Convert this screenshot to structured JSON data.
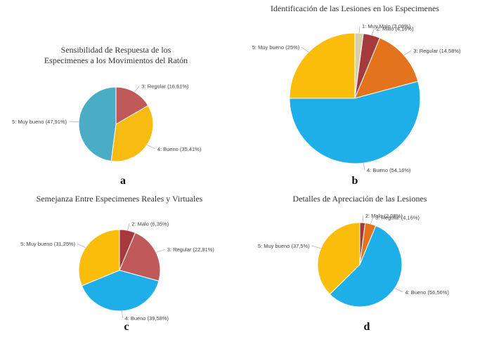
{
  "chart_data": [
    {
      "type": "pie",
      "panel_label": "a",
      "title": [
        "Sensibilidad  de Respuesta de los",
        "Especimenes a los Movimientos  del Ratón"
      ],
      "categories": [
        "3: Regular",
        "4: Bueno",
        "5: Muy bueno"
      ],
      "values": [
        16.61,
        35.41,
        47.91
      ],
      "value_labels": [
        "(16,61%)",
        "(35,41%)",
        "(47,91%)"
      ],
      "colors": [
        "#c0595a",
        "#f7bb12",
        "#4bacc6"
      ]
    },
    {
      "type": "pie",
      "panel_label": "b",
      "title": [
        "Identificación de las Lesiones en los Especimenes"
      ],
      "categories": [
        "1: Muy Malo",
        "2: Malo",
        "3: Regular",
        "4: Bueno",
        "5: Muy bueno"
      ],
      "values": [
        2.08,
        4.16,
        14.58,
        54.16,
        25
      ],
      "value_labels": [
        "(2,08%)",
        "(4,16%)",
        "(14,58%)",
        "(54,16%)",
        "(25%)"
      ],
      "colors": [
        "#d8d0a8",
        "#a5393b",
        "#e3731d",
        "#1eaee8",
        "#fbbd0b"
      ]
    },
    {
      "type": "pie",
      "panel_label": "c",
      "title": [
        "Semejanza  Entre Especimenes Reales y Virtuales"
      ],
      "categories": [
        "2: Malo",
        "3: Regular",
        "4: Bueno",
        "5: Muy bueno"
      ],
      "values": [
        6.35,
        22.91,
        39.58,
        31.25
      ],
      "value_labels": [
        "(6,35%)",
        "(22,91%)",
        "(39,58%)",
        "(31,25%)"
      ],
      "colors": [
        "#a5393b",
        "#c0595a",
        "#1eaee8",
        "#fbbd0b"
      ]
    },
    {
      "type": "pie",
      "panel_label": "d",
      "title": [
        "Detalles  de Apreciación de las Lesiones"
      ],
      "categories": [
        "2: Malo",
        "3: Regular",
        "4: Bueno",
        "5: Muy bueno"
      ],
      "values": [
        2.08,
        4.16,
        56.56,
        37.5
      ],
      "value_labels": [
        "(2,08%)",
        "(4,16%)",
        "(56,56%)",
        "(37,5%)"
      ],
      "colors": [
        "#a5393b",
        "#e3731d",
        "#1eaee8",
        "#fbbd0b"
      ]
    }
  ]
}
